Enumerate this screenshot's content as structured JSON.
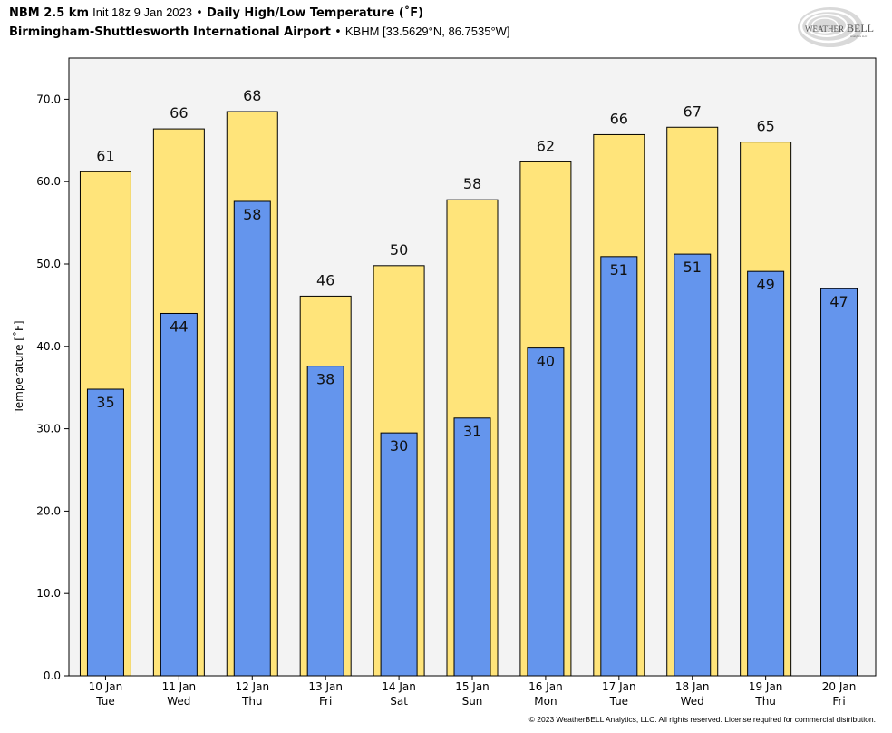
{
  "header": {
    "model": "NBM 2.5 km",
    "init": "Init 18z 9 Jan 2023",
    "separator": "•",
    "product": "Daily High/Low Temperature (˚F)",
    "station_name": "Birmingham-Shuttlesworth International Airport",
    "station_info": "KBHM [33.5629°N, 86.7535°W]"
  },
  "logo": {
    "text_main": "WEATHER",
    "text_bell": "BELL",
    "text_sub": "Analytics LLC"
  },
  "footer": {
    "copyright": "© 2023 WeatherBELL Analytics, LLC. All rights reserved. License required for commercial distribution."
  },
  "colors": {
    "high": "#FFE47A",
    "low": "#6495ED",
    "plot_bg": "#F3F3F3",
    "edge": "#000000"
  },
  "chart_data": {
    "type": "bar",
    "title": "Daily High/Low Temperature (˚F)",
    "xlabel": "",
    "ylabel": "Temperature [˚F]",
    "ylim": [
      0,
      75
    ],
    "yticks": [
      0,
      10,
      20,
      30,
      40,
      50,
      60,
      70
    ],
    "ytick_labels": [
      "0.0",
      "10.0",
      "20.0",
      "30.0",
      "40.0",
      "50.0",
      "60.0",
      "70.0"
    ],
    "grid": false,
    "categories": [
      {
        "date": "10 Jan",
        "day": "Tue"
      },
      {
        "date": "11 Jan",
        "day": "Wed"
      },
      {
        "date": "12 Jan",
        "day": "Thu"
      },
      {
        "date": "13 Jan",
        "day": "Fri"
      },
      {
        "date": "14 Jan",
        "day": "Sat"
      },
      {
        "date": "15 Jan",
        "day": "Sun"
      },
      {
        "date": "16 Jan",
        "day": "Mon"
      },
      {
        "date": "17 Jan",
        "day": "Tue"
      },
      {
        "date": "18 Jan",
        "day": "Wed"
      },
      {
        "date": "19 Jan",
        "day": "Thu"
      },
      {
        "date": "20 Jan",
        "day": "Fri"
      }
    ],
    "series": [
      {
        "name": "High",
        "values": [
          61.2,
          66.4,
          68.5,
          46.1,
          49.8,
          57.8,
          62.4,
          65.7,
          66.6,
          64.8,
          null
        ],
        "labels": [
          "61",
          "66",
          "68",
          "46",
          "50",
          "58",
          "62",
          "66",
          "67",
          "65",
          ""
        ]
      },
      {
        "name": "Low",
        "values": [
          34.8,
          44.0,
          57.6,
          37.6,
          29.5,
          31.3,
          39.8,
          50.9,
          51.2,
          49.1,
          47.0
        ],
        "labels": [
          "35",
          "44",
          "58",
          "38",
          "30",
          "31",
          "40",
          "51",
          "51",
          "49",
          "47"
        ]
      }
    ]
  }
}
